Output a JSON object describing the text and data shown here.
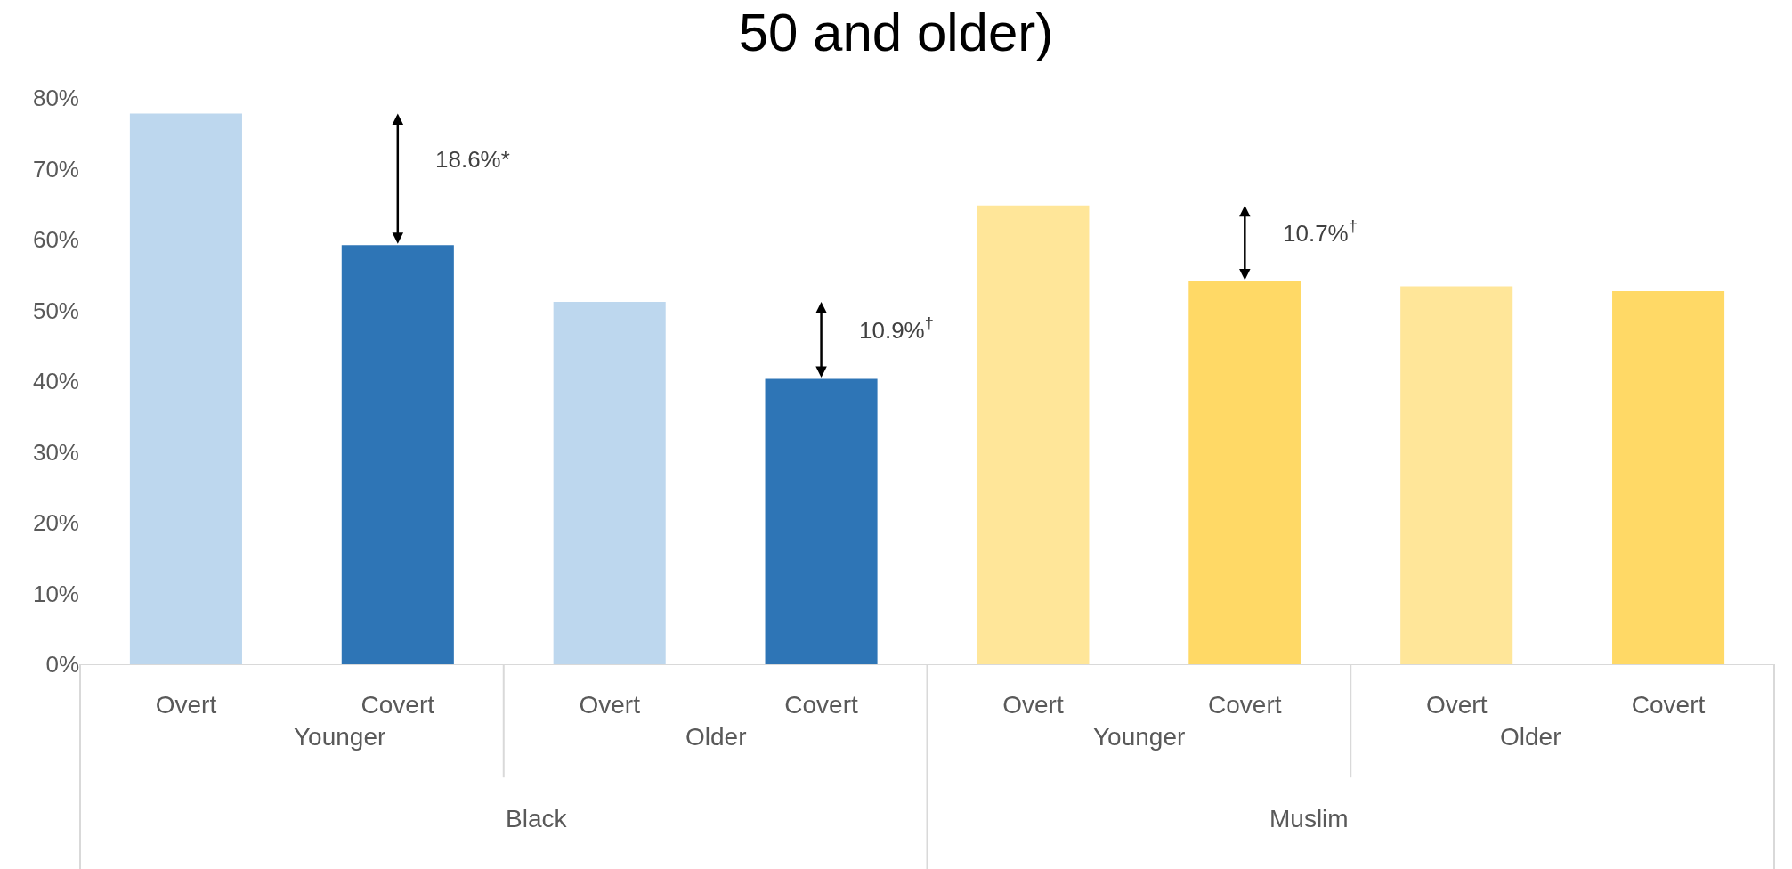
{
  "chart_data": {
    "type": "bar",
    "title": "50 and older)",
    "categories": [
      "Overt",
      "Covert",
      "Overt",
      "Covert",
      "Overt",
      "Covert",
      "Overt",
      "Covert"
    ],
    "values": [
      77.8,
      59.2,
      51.2,
      40.3,
      64.8,
      54.1,
      53.4,
      52.7
    ],
    "colors": [
      "#bdd7ee",
      "#2e75b6",
      "#bdd7ee",
      "#2e75b6",
      "#ffe699",
      "#ffd966",
      "#ffe699",
      "#ffd966"
    ],
    "ylim": [
      0,
      80
    ],
    "yticks": [
      {
        "value": 0,
        "label": "0%"
      },
      {
        "value": 10,
        "label": "10%"
      },
      {
        "value": 20,
        "label": "20%"
      },
      {
        "value": 30,
        "label": "30%"
      },
      {
        "value": 40,
        "label": "40%"
      },
      {
        "value": 50,
        "label": "50%"
      },
      {
        "value": 60,
        "label": "60%"
      },
      {
        "value": 70,
        "label": "70%"
      },
      {
        "value": 80,
        "label": "80%"
      }
    ],
    "grid": false,
    "annotations": [
      "18.6%*",
      "10.9%$^{†}$",
      "10.7%$^{†}$",
      "Younger",
      "Older",
      "Younger",
      "Older",
      "Black",
      "Muslim"
    ]
  }
}
